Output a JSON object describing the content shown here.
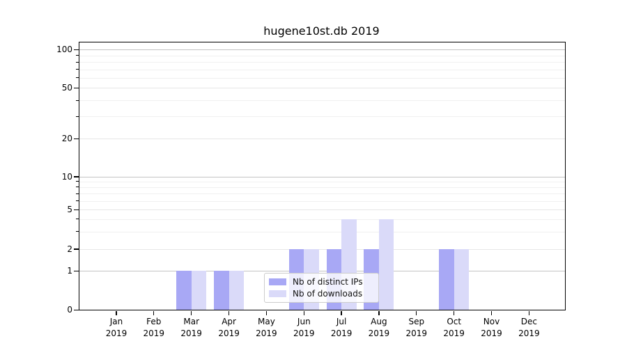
{
  "chart_data": {
    "type": "bar",
    "title": "hugene10st.db 2019",
    "months": [
      "Jan",
      "Feb",
      "Mar",
      "Apr",
      "May",
      "Jun",
      "Jul",
      "Aug",
      "Sep",
      "Oct",
      "Nov",
      "Dec"
    ],
    "year_label": "2019",
    "x_categories": [
      "Jan 2019",
      "Feb 2019",
      "Mar 2019",
      "Apr 2019",
      "May 2019",
      "Jun 2019",
      "Jul 2019",
      "Aug 2019",
      "Sep 2019",
      "Oct 2019",
      "Nov 2019",
      "Dec 2019"
    ],
    "series": [
      {
        "name": "Nb of distinct IPs",
        "color": "#a8a8f5",
        "values": [
          0,
          0,
          1,
          1,
          0,
          2,
          2,
          2,
          0,
          2,
          0,
          0
        ]
      },
      {
        "name": "Nb of downloads",
        "color": "#dadaf9",
        "values": [
          0,
          0,
          1,
          1,
          0,
          2,
          4,
          4,
          0,
          2,
          0,
          0
        ]
      }
    ],
    "y_axis": {
      "scale": "log-like",
      "tick_labels": [
        0,
        1,
        2,
        5,
        10,
        20,
        50,
        100
      ],
      "major_gridlines": [
        1,
        10,
        100
      ],
      "mid_gridlines": [
        2,
        5,
        20,
        50
      ],
      "minor_gridlines": [
        3,
        4,
        6,
        7,
        8,
        9,
        30,
        40,
        60,
        70,
        80,
        90
      ],
      "range": [
        0,
        100
      ]
    },
    "legend": {
      "position": "lower center",
      "entries": [
        "Nb of distinct IPs",
        "Nb of downloads"
      ]
    },
    "grid": true,
    "bar_layout": "pairs centered on month ticks, distinct IPs left / downloads right"
  },
  "colors": {
    "bar_distinct_ips": "#a8a8f5",
    "bar_downloads": "#dadaf9",
    "major_grid": "#c3c3c3",
    "minor_grid": "#f0f0f0",
    "spine": "#000000",
    "legend_border": "#cccccc",
    "background": "#ffffff"
  }
}
